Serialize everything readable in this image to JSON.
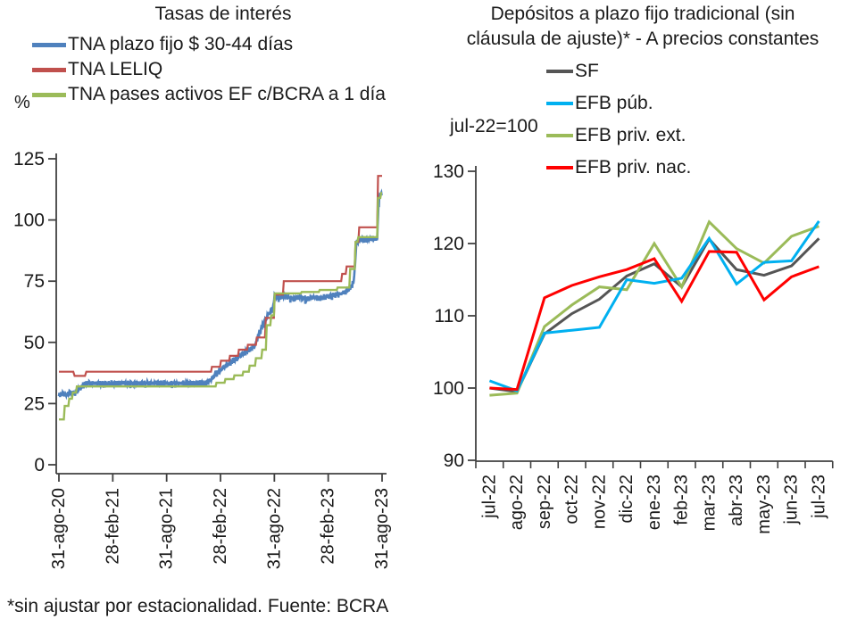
{
  "footer": {
    "note": "*sin ajustar por estacionalidad. Fuente: BCRA"
  },
  "colors": {
    "axis": "#404040",
    "left_blue": "#4F81BD",
    "left_red": "#C0504D",
    "olive_green": "#9BBB59",
    "right_gray": "#555555",
    "right_cyan": "#00B0F0",
    "right_red": "#FF0000"
  },
  "chart_data": [
    {
      "type": "line",
      "title": "Tasas de interés",
      "unit_label": "%",
      "xlabel": "",
      "ylabel": "%",
      "xlim_months": [
        0,
        36
      ],
      "ylim": [
        0,
        125
      ],
      "y_ticks": [
        0,
        25,
        50,
        75,
        100,
        125
      ],
      "x_tick_positions": [
        0,
        6,
        12,
        18,
        24,
        30,
        36
      ],
      "x_tick_labels": [
        "31-ago-20",
        "28-feb-21",
        "31-ago-21",
        "28-feb-22",
        "31-ago-22",
        "28-feb-23",
        "31-ago-23"
      ],
      "grid": false,
      "legend_position": "top-left",
      "series": [
        {
          "name": "TNA plazo fijo $ 30-44 días",
          "color": "#4F81BD",
          "stroke_width": 2.6,
          "noise_amplitude": 1.1,
          "points": [
            [
              0,
              28.5
            ],
            [
              0.4,
              29.4
            ],
            [
              0.8,
              28.6
            ],
            [
              1.2,
              29.8
            ],
            [
              1.6,
              29.2
            ],
            [
              2,
              30.2
            ],
            [
              2.4,
              31.5
            ],
            [
              2.8,
              33.2
            ],
            [
              3.2,
              33.6
            ],
            [
              5,
              33.4
            ],
            [
              7,
              33.6
            ],
            [
              9,
              33.4
            ],
            [
              11,
              33.6
            ],
            [
              13,
              33.4
            ],
            [
              15,
              33.5
            ],
            [
              16.5,
              33.6
            ],
            [
              17,
              35.3
            ],
            [
              17.5,
              37.3
            ],
            [
              18.1,
              39.3
            ],
            [
              18.8,
              41.3
            ],
            [
              19.6,
              43.3
            ],
            [
              20.4,
              45.4
            ],
            [
              21.1,
              47
            ],
            [
              21.8,
              48.5
            ],
            [
              22.2,
              53
            ],
            [
              22.7,
              57.2
            ],
            [
              23.2,
              61
            ],
            [
              23.8,
              63.8
            ],
            [
              24.05,
              69.3
            ],
            [
              24.6,
              68.2
            ],
            [
              25.2,
              69.2
            ],
            [
              26,
              68
            ],
            [
              26.8,
              68.8
            ],
            [
              27.6,
              67.9
            ],
            [
              28.4,
              68.6
            ],
            [
              29.2,
              68.3
            ],
            [
              30,
              69.1
            ],
            [
              30.8,
              69.6
            ],
            [
              31.5,
              70.2
            ],
            [
              32,
              71
            ],
            [
              32.5,
              72.8
            ],
            [
              32.85,
              75
            ],
            [
              33,
              83
            ],
            [
              33.15,
              91
            ],
            [
              33.5,
              92.4
            ],
            [
              34.2,
              92.2
            ],
            [
              34.8,
              92.6
            ],
            [
              35.45,
              92.4
            ],
            [
              35.6,
              106
            ],
            [
              35.75,
              110.5
            ],
            [
              36,
              111
            ]
          ]
        },
        {
          "name": "TNA LELIQ",
          "color": "#C0504D",
          "stroke_width": 2.2,
          "noise_amplitude": 0,
          "points": [
            [
              0,
              38
            ],
            [
              1.6,
              38
            ],
            [
              1.75,
              36.3
            ],
            [
              2.9,
              36.3
            ],
            [
              3.05,
              38
            ],
            [
              16.95,
              38
            ],
            [
              17.05,
              40
            ],
            [
              17.95,
              40
            ],
            [
              18.05,
              42.5
            ],
            [
              18.95,
              42.5
            ],
            [
              19.05,
              44.5
            ],
            [
              19.95,
              44.5
            ],
            [
              20.05,
              47
            ],
            [
              20.95,
              47
            ],
            [
              21.05,
              49
            ],
            [
              21.95,
              49
            ],
            [
              22.05,
              52
            ],
            [
              22.95,
              52
            ],
            [
              23.05,
              60
            ],
            [
              23.95,
              60
            ],
            [
              24.05,
              69.5
            ],
            [
              24.95,
              69.5
            ],
            [
              25.05,
              75
            ],
            [
              31.45,
              75
            ],
            [
              31.55,
              78
            ],
            [
              31.95,
              78
            ],
            [
              32.05,
              81
            ],
            [
              32.95,
              81
            ],
            [
              33.05,
              91
            ],
            [
              33.35,
              91
            ],
            [
              33.45,
              97
            ],
            [
              35.45,
              97
            ],
            [
              35.55,
              118
            ],
            [
              36,
              118
            ]
          ]
        },
        {
          "name": "TNA pases activos EF c/BCRA a 1 día",
          "color": "#9BBB59",
          "stroke_width": 2.4,
          "noise_amplitude": 0,
          "points": [
            [
              0,
              18.5
            ],
            [
              0.55,
              18.5
            ],
            [
              0.65,
              24
            ],
            [
              1.05,
              24
            ],
            [
              1.15,
              27
            ],
            [
              1.45,
              27
            ],
            [
              1.55,
              29.5
            ],
            [
              1.9,
              29.5
            ],
            [
              2,
              32
            ],
            [
              17.45,
              32
            ],
            [
              17.55,
              33.5
            ],
            [
              18.45,
              33.5
            ],
            [
              18.55,
              35
            ],
            [
              19.45,
              35
            ],
            [
              19.55,
              36.5
            ],
            [
              20.45,
              36.5
            ],
            [
              20.55,
              38
            ],
            [
              21.15,
              38
            ],
            [
              21.25,
              40.5
            ],
            [
              21.85,
              40.5
            ],
            [
              21.95,
              43.5
            ],
            [
              22.55,
              43.5
            ],
            [
              22.65,
              47
            ],
            [
              23.05,
              47
            ],
            [
              23.15,
              57
            ],
            [
              23.55,
              57
            ],
            [
              23.65,
              61
            ],
            [
              23.95,
              61
            ],
            [
              24.05,
              70
            ],
            [
              26.95,
              70
            ],
            [
              27.05,
              70.6
            ],
            [
              28.95,
              70.6
            ],
            [
              29.05,
              71.4
            ],
            [
              30.95,
              71.4
            ],
            [
              31.05,
              72.4
            ],
            [
              32.35,
              72.4
            ],
            [
              32.45,
              80
            ],
            [
              32.95,
              80
            ],
            [
              33.05,
              91
            ],
            [
              33.25,
              91
            ],
            [
              33.35,
              93
            ],
            [
              35.45,
              93
            ],
            [
              35.55,
              109
            ],
            [
              35.8,
              109
            ],
            [
              35.9,
              111
            ],
            [
              36,
              111
            ]
          ]
        }
      ]
    },
    {
      "type": "line",
      "title": "Depósitos a plazo fijo tradicional (sin cláusula de ajuste)* - A precios constantes",
      "title_line1": "Depósitos a plazo fijo tradicional (sin",
      "title_line2": "cláusula de ajuste)* - A precios constantes",
      "unit_label": "jul-22=100",
      "xlabel": "",
      "ylabel": "índice jul-22=100",
      "ylim": [
        90,
        130
      ],
      "y_ticks": [
        90,
        100,
        110,
        120,
        130
      ],
      "grid": false,
      "legend_position": "top-center",
      "categories": [
        "jul-22",
        "ago-22",
        "sep-22",
        "oct-22",
        "nov-22",
        "dic-22",
        "ene-23",
        "feb-23",
        "mar-23",
        "abr-23",
        "may-23",
        "jun-23",
        "jul-23"
      ],
      "series": [
        {
          "name": "SF",
          "color": "#555555",
          "stroke_width": 3,
          "values": [
            100,
            99.5,
            107.5,
            110.3,
            112.3,
            115.5,
            117.2,
            114.0,
            120.6,
            116.4,
            115.6,
            116.9,
            120.7
          ]
        },
        {
          "name": "EFB priv. ext.",
          "color": "#9BBB59",
          "stroke_width": 3,
          "values": [
            99,
            99.3,
            108.5,
            111.5,
            114.0,
            113.6,
            120.0,
            114.0,
            123.0,
            119.3,
            117.3,
            121.0,
            122.4
          ]
        },
        {
          "name": "EFB púb.",
          "color": "#00B0F0",
          "stroke_width": 3,
          "values": [
            101,
            99.6,
            107.6,
            108.0,
            108.4,
            115.0,
            114.5,
            115.2,
            120.7,
            114.4,
            117.4,
            117.6,
            123.1
          ]
        },
        {
          "name": "EFB priv. nac.",
          "color": "#FF0000",
          "stroke_width": 3,
          "values": [
            100,
            99.8,
            112.5,
            114.2,
            115.4,
            116.4,
            117.9,
            112.0,
            118.9,
            118.8,
            112.2,
            115.4,
            116.8
          ]
        }
      ],
      "legend_order": [
        "SF",
        "EFB púb.",
        "EFB priv. ext.",
        "EFB priv. nac."
      ]
    }
  ]
}
